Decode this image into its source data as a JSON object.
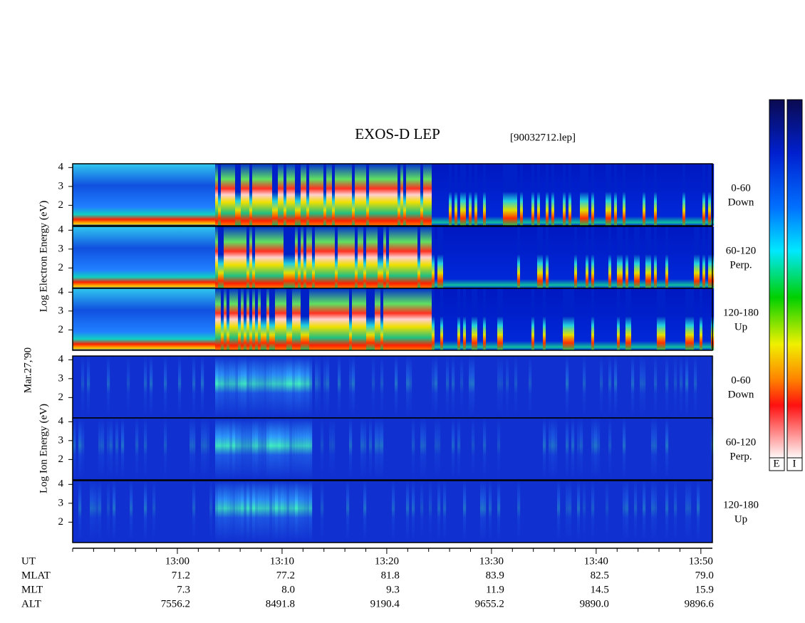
{
  "chart_data": {
    "type": "spectrogram",
    "title": "EXOS-D LEP",
    "subtitle": "[90032712.lep]",
    "xlim": [
      770,
      831.1
    ],
    "xticks": [
      {
        "value": 780,
        "label": "13:00"
      },
      {
        "value": 790,
        "label": "13:10"
      },
      {
        "value": 800,
        "label": "13:20"
      },
      {
        "value": 810,
        "label": "13:30"
      },
      {
        "value": 820,
        "label": "13:40"
      },
      {
        "value": 830,
        "label": "13:50"
      }
    ],
    "xminor": [
      770,
      772,
      774,
      776,
      778,
      782,
      784,
      786,
      788,
      792,
      794,
      796,
      798,
      802,
      804,
      806,
      808,
      812,
      814,
      816,
      818,
      822,
      824,
      826,
      828
    ],
    "group_labels": [
      {
        "group": "electron",
        "label": "Log Electron Energy (eV)"
      },
      {
        "group": "ion",
        "label": "Log Ion Energy (eV)"
      }
    ],
    "date": "Mar.27,'90",
    "panels": [
      {
        "group": "electron",
        "ylim": [
          0.92,
          4.2
        ],
        "yticks": [
          2,
          3,
          4
        ],
        "right_label": [
          "0-60",
          "Down"
        ]
      },
      {
        "group": "electron",
        "ylim": [
          0.92,
          4.2
        ],
        "yticks": [
          2,
          3,
          4
        ],
        "right_label": [
          "60-120",
          "Perp."
        ]
      },
      {
        "group": "electron",
        "ylim": [
          0.92,
          4.2
        ],
        "yticks": [
          2,
          3,
          4
        ],
        "right_label": [
          "120-180",
          "Up"
        ]
      },
      {
        "group": "ion",
        "ylim": [
          0.92,
          4.2
        ],
        "yticks": [
          2,
          3,
          4
        ],
        "right_label": [
          "0-60",
          "Down"
        ]
      },
      {
        "group": "ion",
        "ylim": [
          0.92,
          4.2
        ],
        "yticks": [
          2,
          3,
          4
        ],
        "right_label": [
          "60-120",
          "Perp."
        ]
      },
      {
        "group": "ion",
        "ylim": [
          0.92,
          4.2
        ],
        "yticks": [
          2,
          3,
          4
        ],
        "right_label": [
          "120-180",
          "Up"
        ]
      }
    ],
    "colorbar_labels": [
      "E",
      "I"
    ],
    "ephemeris": {
      "labels": [
        "UT",
        "MLAT",
        "MLT",
        "ALT"
      ],
      "rows": [
        [
          "71.2",
          "77.2",
          "81.8",
          "83.9",
          "82.5",
          "79.0"
        ],
        [
          "7.3",
          "8.0",
          "9.3",
          "11.9",
          "14.5",
          "15.9"
        ],
        [
          "7556.2",
          "8491.8",
          "9190.4",
          "9655.2",
          "9890.0",
          "9896.6"
        ]
      ]
    }
  }
}
